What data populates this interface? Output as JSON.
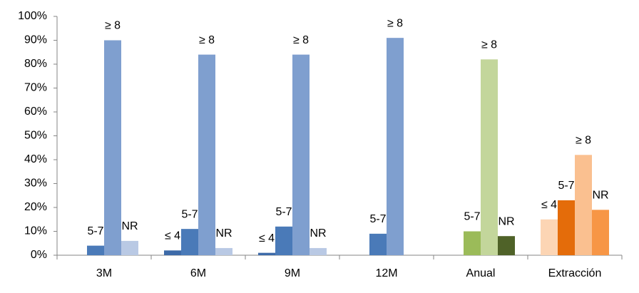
{
  "chart_data": {
    "type": "bar",
    "categories": [
      "3M",
      "6M",
      "9M",
      "12M",
      "Anual",
      "Extracción"
    ],
    "series": [
      {
        "name": "≤ 4",
        "values": [
          null,
          2,
          1,
          null,
          null,
          15
        ],
        "colors": [
          "#3d6aa8",
          "#3d6aa8",
          "#3d6aa8",
          "#3d6aa8",
          "#7a9a3a",
          "#fcd5b4"
        ]
      },
      {
        "name": "5-7",
        "values": [
          4,
          11,
          12,
          9,
          10,
          23
        ],
        "colors": [
          "#4a7ab8",
          "#4a7ab8",
          "#4a7ab8",
          "#4a7ab8",
          "#9bbb59",
          "#e46c0a"
        ]
      },
      {
        "name": "≥ 8",
        "values": [
          90,
          84,
          84,
          91,
          82,
          42
        ],
        "colors": [
          "#7f9fcf",
          "#7f9fcf",
          "#7f9fcf",
          "#7f9fcf",
          "#c3d69b",
          "#fac090"
        ]
      },
      {
        "name": "NR",
        "values": [
          6,
          3,
          3,
          null,
          8,
          19
        ],
        "colors": [
          "#b9c9e4",
          "#b9c9e4",
          "#b9c9e4",
          "#b9c9e4",
          "#4f6228",
          "#f79646"
        ]
      }
    ],
    "ylim": [
      0,
      100
    ],
    "yticks": [
      {
        "value": 0,
        "label": "0%"
      },
      {
        "value": 10,
        "label": "10%"
      },
      {
        "value": 20,
        "label": "20%"
      },
      {
        "value": 30,
        "label": "30%"
      },
      {
        "value": 40,
        "label": "40%"
      },
      {
        "value": 50,
        "label": "50%"
      },
      {
        "value": 60,
        "label": "60%"
      },
      {
        "value": 70,
        "label": "70%"
      },
      {
        "value": 80,
        "label": "80%"
      },
      {
        "value": 90,
        "label": "90%"
      },
      {
        "value": 100,
        "label": "100%"
      }
    ],
    "grid": false
  }
}
